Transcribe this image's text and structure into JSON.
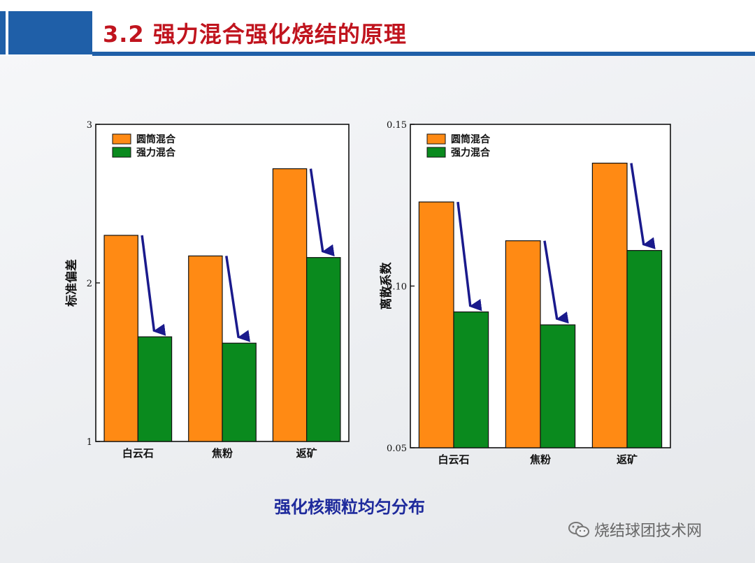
{
  "title": "3.2 强力混合强化烧结的原理",
  "caption": "强化核颗粒均匀分布",
  "watermark": "烧结球团技术网",
  "colors": {
    "drum": "#ff8a14",
    "strong": "#0a8a1e",
    "arrow": "#1a1a8c",
    "title": "#c0141e",
    "accent": "#1f5fa8"
  },
  "chart_data": [
    {
      "type": "bar",
      "categories": [
        "白云石",
        "焦粉",
        "返矿"
      ],
      "series": [
        {
          "name": "圆筒混合",
          "values": [
            2.3,
            2.17,
            2.72
          ]
        },
        {
          "name": "强力混合",
          "values": [
            1.66,
            1.62,
            2.16
          ]
        }
      ],
      "ylabel": "标准偏差",
      "ylim": [
        1,
        3
      ],
      "yticks": [
        "1",
        "2",
        "3"
      ],
      "legend": "top-left"
    },
    {
      "type": "bar",
      "categories": [
        "白云石",
        "焦粉",
        "返矿"
      ],
      "series": [
        {
          "name": "圆筒混合",
          "values": [
            0.126,
            0.114,
            0.138
          ]
        },
        {
          "name": "强力混合",
          "values": [
            0.092,
            0.088,
            0.111
          ]
        }
      ],
      "ylabel": "离散系数",
      "ylim": [
        0.05,
        0.15
      ],
      "yticks": [
        "0.05",
        "0.10",
        "0.15"
      ],
      "legend": "top-left"
    }
  ]
}
